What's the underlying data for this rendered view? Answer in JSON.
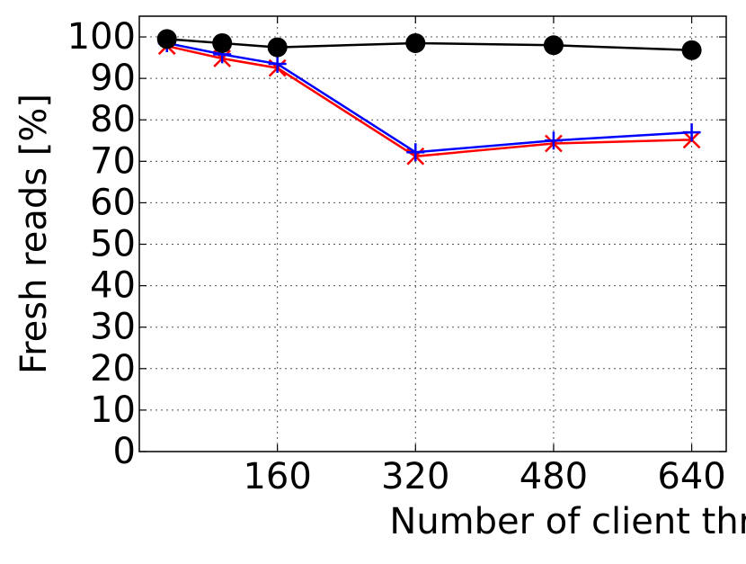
{
  "chart_data": {
    "type": "line",
    "x_label": "Number of client threads",
    "y_label": "Fresh reads [%]",
    "x": [
      32,
      96,
      160,
      320,
      480,
      640
    ],
    "series": [
      {
        "color": "#000000",
        "marker": "circle",
        "values": [
          99.5,
          98.5,
          97.5,
          98.5,
          98,
          96.8
        ]
      },
      {
        "color": "#0000ff",
        "marker": "plus",
        "values": [
          98.5,
          95.8,
          93.5,
          72.2,
          75,
          77
        ]
      },
      {
        "color": "#ff0000",
        "marker": "x",
        "values": [
          97.8,
          94.8,
          92.5,
          71.2,
          74.3,
          75.2
        ]
      }
    ],
    "xlim": [
      0,
      680
    ],
    "xticks": [
      160,
      320,
      480,
      640
    ],
    "ylim": [
      0,
      105
    ],
    "yticks": [
      0,
      10,
      20,
      30,
      40,
      50,
      60,
      70,
      80,
      90,
      100
    ],
    "grid": true
  }
}
